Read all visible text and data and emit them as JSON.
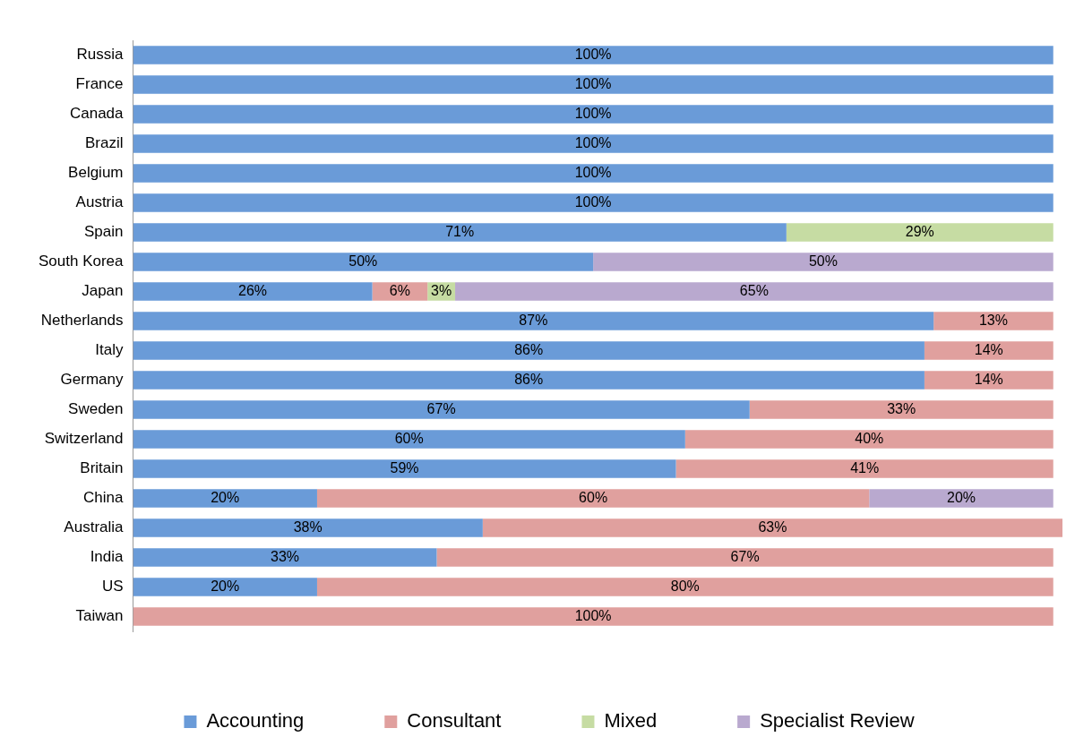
{
  "chart_data": {
    "type": "bar",
    "orientation": "horizontal",
    "stacked": true,
    "tick_labels": "y",
    "grid": false,
    "legend": "bottom",
    "categories": [
      "Russia",
      "France",
      "Canada",
      "Brazil",
      "Belgium",
      "Austria",
      "Spain",
      "South Korea",
      "Japan",
      "Netherlands",
      "Italy",
      "Germany",
      "Sweden",
      "Switzerland",
      "Britain",
      "China",
      "Australia",
      "India",
      "US",
      "Taiwan"
    ],
    "series": [
      {
        "name": "Accounting",
        "color": "#6a9bd8",
        "values": [
          100,
          100,
          100,
          100,
          100,
          100,
          71,
          50,
          26,
          87,
          86,
          86,
          67,
          60,
          59,
          20,
          38,
          33,
          20,
          null
        ],
        "value_labels": [
          "100%",
          "100%",
          "100%",
          "100%",
          "100%",
          "100%",
          "71%",
          "50%",
          "26%",
          "87%",
          "86%",
          "86%",
          "67%",
          "60%",
          "59%",
          "20%",
          "38%",
          "33%",
          "20%",
          null
        ]
      },
      {
        "name": "Consultant",
        "color": "#e0a09e",
        "values": [
          null,
          null,
          null,
          null,
          null,
          null,
          null,
          null,
          6,
          13,
          14,
          14,
          33,
          40,
          41,
          60,
          63,
          67,
          80,
          100
        ],
        "value_labels": [
          null,
          null,
          null,
          null,
          null,
          null,
          null,
          null,
          "6%",
          "13%",
          "14%",
          "14%",
          "33%",
          "40%",
          "41%",
          "60%",
          "63%",
          "67%",
          "80%",
          "100%"
        ]
      },
      {
        "name": "Mixed",
        "color": "#c6dca3",
        "values": [
          null,
          null,
          null,
          null,
          null,
          null,
          29,
          null,
          3,
          null,
          null,
          null,
          null,
          null,
          null,
          null,
          null,
          null,
          null,
          null
        ],
        "value_labels": [
          null,
          null,
          null,
          null,
          null,
          null,
          "29%",
          null,
          "3%",
          null,
          null,
          null,
          null,
          null,
          null,
          null,
          null,
          null,
          null,
          null
        ]
      },
      {
        "name": "Specialist Review",
        "color": "#b9a9cf",
        "values": [
          null,
          null,
          null,
          null,
          null,
          null,
          null,
          50,
          65,
          null,
          null,
          null,
          null,
          null,
          null,
          20,
          null,
          null,
          null,
          null
        ],
        "value_labels": [
          null,
          null,
          null,
          null,
          null,
          null,
          null,
          "50%",
          "65%",
          null,
          null,
          null,
          null,
          null,
          null,
          "20%",
          null,
          null,
          null,
          null
        ]
      }
    ]
  }
}
